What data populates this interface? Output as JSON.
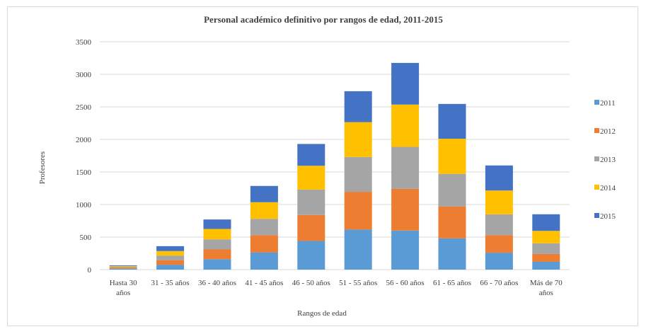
{
  "chart_data": {
    "type": "bar",
    "stacked": true,
    "title": "Personal académico definitivo por rangos de edad, 2011-2015",
    "xlabel": "Rangos de edad",
    "ylabel": "Profesores",
    "ylim": [
      0,
      3500
    ],
    "yticks": [
      0,
      500,
      1000,
      1500,
      2000,
      2500,
      3000,
      3500
    ],
    "grid": true,
    "legend_position": "right",
    "categories": [
      "Hasta 30 años",
      "31 - 35 años",
      "36 - 40 años",
      "41 - 45 años",
      "46 - 50 años",
      "51 - 55 años",
      "56 - 60 años",
      "61 - 65 años",
      "66 - 70 años",
      "Más de 70 años"
    ],
    "category_lines": [
      [
        "Hasta 30",
        "años"
      ],
      [
        "31 - 35 años"
      ],
      [
        "36 - 40 años"
      ],
      [
        "41 - 45 años"
      ],
      [
        "46 - 50 años"
      ],
      [
        "51 - 55 años"
      ],
      [
        "56 - 60 años"
      ],
      [
        "61 - 65 años"
      ],
      [
        "66 - 70 años"
      ],
      [
        "Más de 70",
        "años"
      ]
    ],
    "series": [
      {
        "name": "2011",
        "color": "#5B9BD5",
        "values": [
          15,
          75,
          160,
          265,
          440,
          615,
          600,
          480,
          260,
          120
        ]
      },
      {
        "name": "2012",
        "color": "#ED7D31",
        "values": [
          15,
          70,
          150,
          265,
          400,
          580,
          640,
          490,
          270,
          120
        ]
      },
      {
        "name": "2013",
        "color": "#A5A5A5",
        "values": [
          15,
          70,
          155,
          250,
          390,
          535,
          645,
          500,
          320,
          165
        ]
      },
      {
        "name": "2014",
        "color": "#FFC000",
        "values": [
          10,
          70,
          160,
          255,
          365,
          535,
          650,
          540,
          365,
          190
        ]
      },
      {
        "name": "2015",
        "color": "#4472C4",
        "values": [
          10,
          75,
          145,
          250,
          335,
          475,
          640,
          535,
          385,
          255
        ]
      }
    ]
  }
}
